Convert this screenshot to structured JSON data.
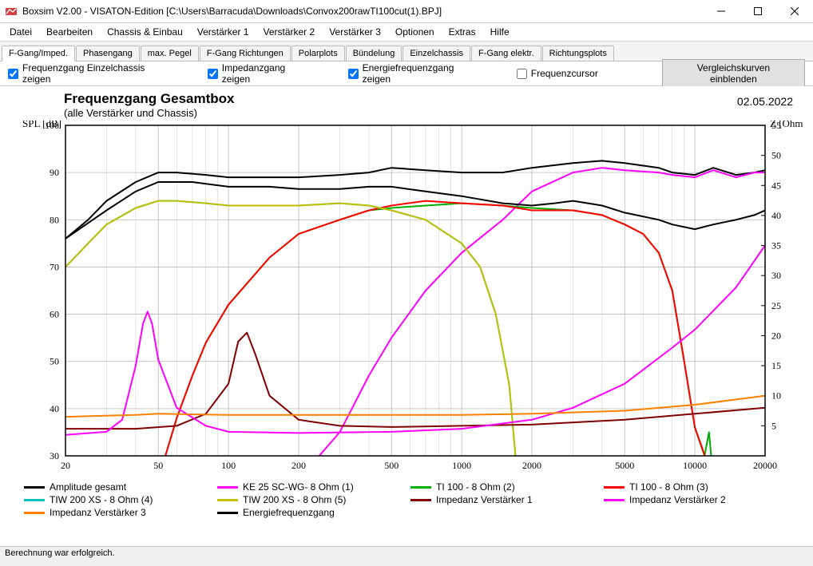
{
  "window": {
    "title": "Boxsim V2.00 - VISATON-Edition [C:\\Users\\Barracuda\\Downloads\\Convox200rawTI100cut(1).BPJ]"
  },
  "menu": [
    "Datei",
    "Bearbeiten",
    "Chassis & Einbau",
    "Verstärker 1",
    "Verstärker 2",
    "Verstärker 3",
    "Optionen",
    "Extras",
    "Hilfe"
  ],
  "tabs": [
    "F-Gang/Imped.",
    "Phasengang",
    "max. Pegel",
    "F-Gang Richtungen",
    "Polarplots",
    "Bündelung",
    "Einzelchassis",
    "F-Gang elektr.",
    "Richtungsplots"
  ],
  "active_tab": 0,
  "options": {
    "chk1": {
      "label": "Frequenzgang Einzelchassis zeigen",
      "checked": true
    },
    "chk2": {
      "label": "Impedanzgang zeigen",
      "checked": true
    },
    "chk3": {
      "label": "Energiefrequenzgang zeigen",
      "checked": true
    },
    "chk4": {
      "label": "Frequenzcursor",
      "checked": false
    },
    "button": "Vergleichskurven einblenden"
  },
  "chart": {
    "title": "Frequenzgang Gesamtbox",
    "subtitle": "(alle Verstärker und Chassis)",
    "date": "02.05.2022",
    "ylabel_left": "SPL [dB]",
    "ylabel_right": "Z [Ohm]",
    "xlabel_suffix": "Hz",
    "x_min": 20,
    "x_max": 20000,
    "y_left_min": 30,
    "y_left_max": 100,
    "y_right_min": 0,
    "y_right_max": 55,
    "y_left_ticks": [
      30,
      40,
      50,
      60,
      70,
      80,
      90,
      100
    ],
    "y_right_ticks": [
      5,
      10,
      15,
      20,
      25,
      30,
      35,
      40,
      45,
      50,
      55
    ],
    "x_ticks": [
      20,
      50,
      100,
      200,
      500,
      1000,
      2000,
      5000,
      10000,
      20000
    ],
    "x_minor": [
      30,
      40,
      60,
      70,
      80,
      90,
      300,
      400,
      600,
      700,
      800,
      900,
      3000,
      4000,
      6000,
      7000,
      8000,
      9000
    ],
    "plot_bg": "#ffffff",
    "grid_color": "#b8b8b8",
    "series": [
      {
        "name": "Amplitude gesamt",
        "axis": "left",
        "color": "#000000",
        "width": 2,
        "pts": [
          [
            20,
            76
          ],
          [
            25,
            80
          ],
          [
            30,
            84
          ],
          [
            40,
            88
          ],
          [
            50,
            90
          ],
          [
            60,
            90
          ],
          [
            80,
            89.5
          ],
          [
            100,
            89
          ],
          [
            150,
            89
          ],
          [
            200,
            89
          ],
          [
            300,
            89.5
          ],
          [
            400,
            90
          ],
          [
            500,
            91
          ],
          [
            700,
            90.5
          ],
          [
            1000,
            90
          ],
          [
            1500,
            90
          ],
          [
            2000,
            91
          ],
          [
            3000,
            92
          ],
          [
            4000,
            92.5
          ],
          [
            5000,
            92
          ],
          [
            7000,
            91
          ],
          [
            8000,
            90
          ],
          [
            10000,
            89.5
          ],
          [
            12000,
            91
          ],
          [
            15000,
            89.5
          ],
          [
            18000,
            90
          ],
          [
            20000,
            90.5
          ]
        ]
      },
      {
        "name": "KE 25 SC-WG- 8 Ohm   (1)",
        "axis": "left",
        "color": "#ff00ff",
        "width": 2,
        "pts": [
          [
            200,
            25
          ],
          [
            300,
            35
          ],
          [
            400,
            47
          ],
          [
            500,
            55
          ],
          [
            700,
            65
          ],
          [
            1000,
            73
          ],
          [
            1500,
            80
          ],
          [
            2000,
            86
          ],
          [
            3000,
            90
          ],
          [
            4000,
            91
          ],
          [
            5000,
            90.5
          ],
          [
            7000,
            90
          ],
          [
            8000,
            89.5
          ],
          [
            10000,
            89
          ],
          [
            12000,
            90.5
          ],
          [
            15000,
            89
          ],
          [
            18000,
            90
          ],
          [
            20000,
            90
          ]
        ]
      },
      {
        "name": "TI 100 - 8 Ohm (2)",
        "axis": "left",
        "color": "#00b000",
        "width": 2,
        "pts": [
          [
            50,
            25
          ],
          [
            60,
            38
          ],
          [
            70,
            47
          ],
          [
            80,
            54
          ],
          [
            100,
            62
          ],
          [
            150,
            72
          ],
          [
            200,
            77
          ],
          [
            300,
            80
          ],
          [
            400,
            82
          ],
          [
            500,
            82.5
          ],
          [
            700,
            83
          ],
          [
            1000,
            83.5
          ],
          [
            1500,
            83
          ],
          [
            2000,
            82.5
          ],
          [
            3000,
            82
          ],
          [
            4000,
            81
          ],
          [
            5000,
            79
          ],
          [
            6000,
            77
          ],
          [
            7000,
            73
          ],
          [
            8000,
            65
          ],
          [
            9000,
            50
          ],
          [
            10000,
            36
          ],
          [
            11000,
            30
          ],
          [
            11500,
            35
          ],
          [
            12000,
            25
          ]
        ]
      },
      {
        "name": "TI 100 - 8 Ohm (3)",
        "axis": "left",
        "color": "#ff0000",
        "width": 2,
        "pts": [
          [
            50,
            25
          ],
          [
            60,
            38
          ],
          [
            70,
            47
          ],
          [
            80,
            54
          ],
          [
            100,
            62
          ],
          [
            150,
            72
          ],
          [
            200,
            77
          ],
          [
            300,
            80
          ],
          [
            400,
            82
          ],
          [
            500,
            83
          ],
          [
            700,
            84
          ],
          [
            1000,
            83.5
          ],
          [
            1500,
            83
          ],
          [
            2000,
            82
          ],
          [
            3000,
            82
          ],
          [
            4000,
            81
          ],
          [
            5000,
            79
          ],
          [
            6000,
            77
          ],
          [
            7000,
            73
          ],
          [
            8000,
            65
          ],
          [
            9000,
            50
          ],
          [
            10000,
            36
          ],
          [
            12000,
            25
          ]
        ]
      },
      {
        "name": "TIW 200 XS - 8 Ohm (4)",
        "axis": "left",
        "color": "#00c0c0",
        "width": 2,
        "pts": [
          [
            20,
            70
          ],
          [
            25,
            75
          ],
          [
            30,
            79
          ],
          [
            40,
            82.5
          ],
          [
            50,
            84
          ],
          [
            60,
            84
          ],
          [
            80,
            83.5
          ],
          [
            100,
            83
          ],
          [
            150,
            83
          ],
          [
            200,
            83
          ],
          [
            300,
            83.5
          ],
          [
            400,
            83
          ],
          [
            500,
            82
          ],
          [
            700,
            80
          ],
          [
            1000,
            75
          ],
          [
            1200,
            70
          ],
          [
            1400,
            60
          ],
          [
            1600,
            45
          ],
          [
            1700,
            30
          ],
          [
            1800,
            25
          ]
        ]
      },
      {
        "name": "TIW 200 XS - 8 Ohm (5)",
        "axis": "left",
        "color": "#c0c000",
        "width": 2,
        "pts": [
          [
            20,
            70
          ],
          [
            25,
            75
          ],
          [
            30,
            79
          ],
          [
            40,
            82.5
          ],
          [
            50,
            84
          ],
          [
            60,
            84
          ],
          [
            80,
            83.5
          ],
          [
            100,
            83
          ],
          [
            150,
            83
          ],
          [
            200,
            83
          ],
          [
            300,
            83.5
          ],
          [
            400,
            83
          ],
          [
            500,
            82
          ],
          [
            700,
            80
          ],
          [
            1000,
            75
          ],
          [
            1200,
            70
          ],
          [
            1400,
            60
          ],
          [
            1600,
            45
          ],
          [
            1700,
            30
          ],
          [
            1800,
            25
          ]
        ]
      },
      {
        "name": "Impedanz Verstärker 1",
        "axis": "right",
        "color": "#800000",
        "width": 2,
        "pts": [
          [
            20,
            4.5
          ],
          [
            40,
            4.5
          ],
          [
            60,
            5
          ],
          [
            80,
            7
          ],
          [
            100,
            12
          ],
          [
            110,
            19
          ],
          [
            120,
            20.5
          ],
          [
            130,
            17
          ],
          [
            150,
            10
          ],
          [
            200,
            6
          ],
          [
            300,
            5
          ],
          [
            500,
            4.8
          ],
          [
            1000,
            5
          ],
          [
            2000,
            5.2
          ],
          [
            5000,
            6
          ],
          [
            10000,
            7
          ],
          [
            20000,
            8
          ]
        ]
      },
      {
        "name": "Impedanz Verstärker 2",
        "axis": "right",
        "color": "#ff00ff",
        "width": 2,
        "pts": [
          [
            20,
            3.5
          ],
          [
            30,
            4
          ],
          [
            35,
            6
          ],
          [
            40,
            15
          ],
          [
            43,
            22
          ],
          [
            45,
            24
          ],
          [
            47,
            22
          ],
          [
            50,
            16
          ],
          [
            60,
            8
          ],
          [
            80,
            5
          ],
          [
            100,
            4
          ],
          [
            200,
            3.8
          ],
          [
            500,
            4
          ],
          [
            1000,
            4.5
          ],
          [
            2000,
            6
          ],
          [
            3000,
            8
          ],
          [
            5000,
            12
          ],
          [
            8000,
            18
          ],
          [
            10000,
            21
          ],
          [
            15000,
            28
          ],
          [
            20000,
            35
          ]
        ]
      },
      {
        "name": "Impedanz Verstärker 3",
        "axis": "right",
        "color": "#ff8000",
        "width": 2,
        "pts": [
          [
            20,
            6.5
          ],
          [
            40,
            6.8
          ],
          [
            50,
            7
          ],
          [
            100,
            6.8
          ],
          [
            200,
            6.8
          ],
          [
            500,
            6.8
          ],
          [
            1000,
            6.8
          ],
          [
            2000,
            7
          ],
          [
            5000,
            7.5
          ],
          [
            10000,
            8.5
          ],
          [
            20000,
            10
          ]
        ]
      },
      {
        "name": "Energiefrequenzgang",
        "axis": "left",
        "color": "#000000",
        "width": 2,
        "pts": [
          [
            20,
            76
          ],
          [
            30,
            82
          ],
          [
            40,
            86
          ],
          [
            50,
            88
          ],
          [
            70,
            88
          ],
          [
            100,
            87
          ],
          [
            150,
            87
          ],
          [
            200,
            86.5
          ],
          [
            300,
            86.5
          ],
          [
            400,
            87
          ],
          [
            500,
            87
          ],
          [
            700,
            86
          ],
          [
            1000,
            85
          ],
          [
            1500,
            83.5
          ],
          [
            2000,
            83
          ],
          [
            2500,
            83.5
          ],
          [
            3000,
            84
          ],
          [
            4000,
            83
          ],
          [
            5000,
            81.5
          ],
          [
            7000,
            80
          ],
          [
            8000,
            79
          ],
          [
            10000,
            78
          ],
          [
            12000,
            79
          ],
          [
            15000,
            80
          ],
          [
            18000,
            81
          ],
          [
            20000,
            82
          ]
        ]
      }
    ],
    "legend_order": [
      0,
      1,
      2,
      3,
      4,
      5,
      6,
      7,
      8,
      9
    ]
  },
  "status": "Berechnung war erfolgreich."
}
